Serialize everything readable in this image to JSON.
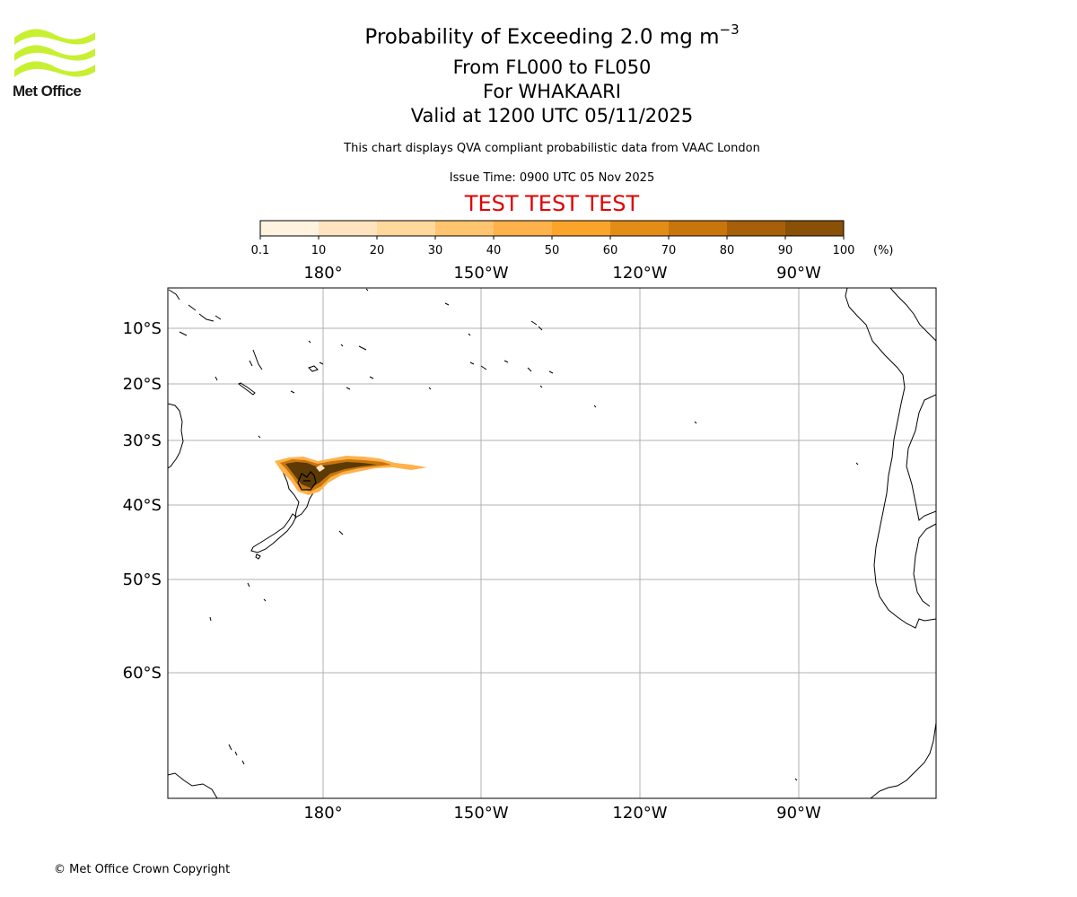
{
  "header": {
    "title_main": "Probability of Exceeding 2.0 mg m",
    "title_exponent": "−3",
    "flight_levels": "From FL000 to FL050",
    "volcano": "For WHAKAARI",
    "valid_time": "Valid at 1200 UTC 05/11/2025",
    "disclaimer": "This chart displays QVA compliant probabilistic data from VAAC London",
    "issue_time": "Issue Time: 0900 UTC 05 Nov 2025",
    "test_banner": "TEST TEST TEST"
  },
  "logo": {
    "text": "Met Office",
    "color": "#c8f032"
  },
  "colorbar": {
    "ticks": [
      "0.1",
      "10",
      "20",
      "30",
      "40",
      "50",
      "60",
      "70",
      "80",
      "90",
      "100"
    ],
    "unit": "(%)",
    "colors": [
      "#fff3e0",
      "#ffe4bf",
      "#ffd89b",
      "#ffc46e",
      "#ffb14a",
      "#fba42a",
      "#e38d16",
      "#c8760c",
      "#a75f09",
      "#895008",
      "#5b3a05"
    ]
  },
  "map": {
    "lon_labels": [
      "180°",
      "150°W",
      "120°W",
      "90°W"
    ],
    "lat_labels": [
      "10°S",
      "20°S",
      "30°S",
      "40°S",
      "50°S",
      "60°S"
    ],
    "volcano_name": "WHAKAARI",
    "plume_color_outer": "#ffb14a",
    "plume_color_mid": "#c8760c",
    "plume_color_core": "#5b3a05"
  },
  "footer": {
    "copyright": "© Met Office Crown Copyright"
  }
}
